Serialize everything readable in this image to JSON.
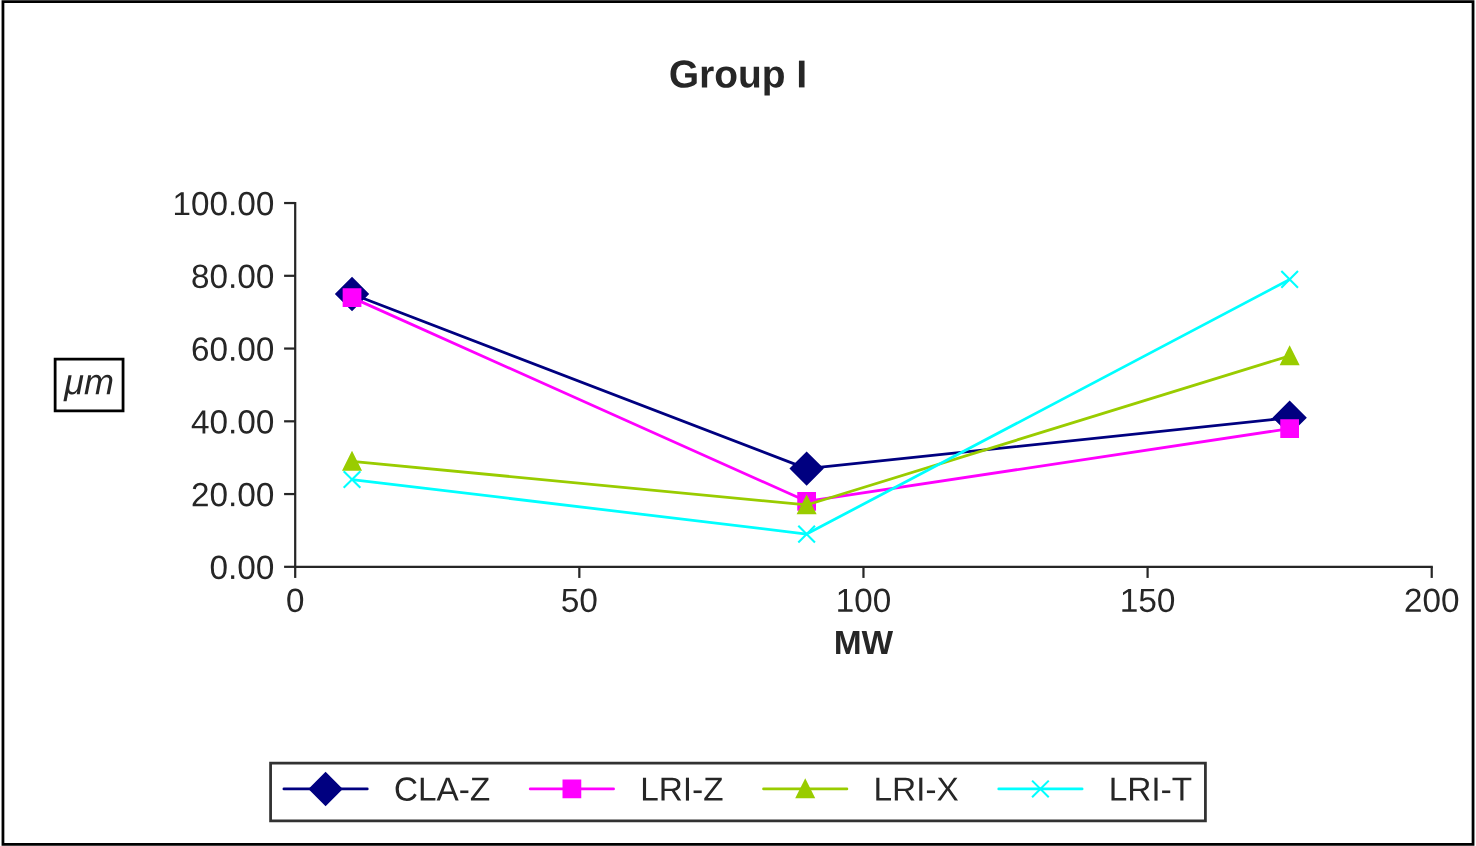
{
  "chart_data": {
    "type": "line",
    "title": "Group I",
    "xlabel": "MW",
    "ylabel": "μm",
    "x": [
      10,
      90,
      175
    ],
    "series": [
      {
        "name": "CLA-Z",
        "color": "#000080",
        "marker": "diamond",
        "values": [
          75,
          27,
          41
        ]
      },
      {
        "name": "LRI-Z",
        "color": "#ff00ff",
        "marker": "square",
        "values": [
          74,
          18,
          38
        ]
      },
      {
        "name": "LRI-X",
        "color": "#99cc00",
        "marker": "triangle",
        "values": [
          29,
          17,
          58
        ]
      },
      {
        "name": "LRI-T",
        "color": "#00ffff",
        "marker": "cross",
        "values": [
          24,
          9,
          79
        ]
      }
    ],
    "xlim": [
      0,
      200
    ],
    "xticks": [
      0,
      50,
      100,
      150,
      200
    ],
    "ylim": [
      0,
      100
    ],
    "yticks": [
      {
        "value": 0,
        "label": "0.00"
      },
      {
        "value": 20,
        "label": "20.00"
      },
      {
        "value": 40,
        "label": "40.00"
      },
      {
        "value": 60,
        "label": "60.00"
      },
      {
        "value": 80,
        "label": "80.00"
      },
      {
        "value": 100,
        "label": "100.00"
      }
    ],
    "grid": false,
    "legend": "bottom",
    "line_style": "solid"
  }
}
